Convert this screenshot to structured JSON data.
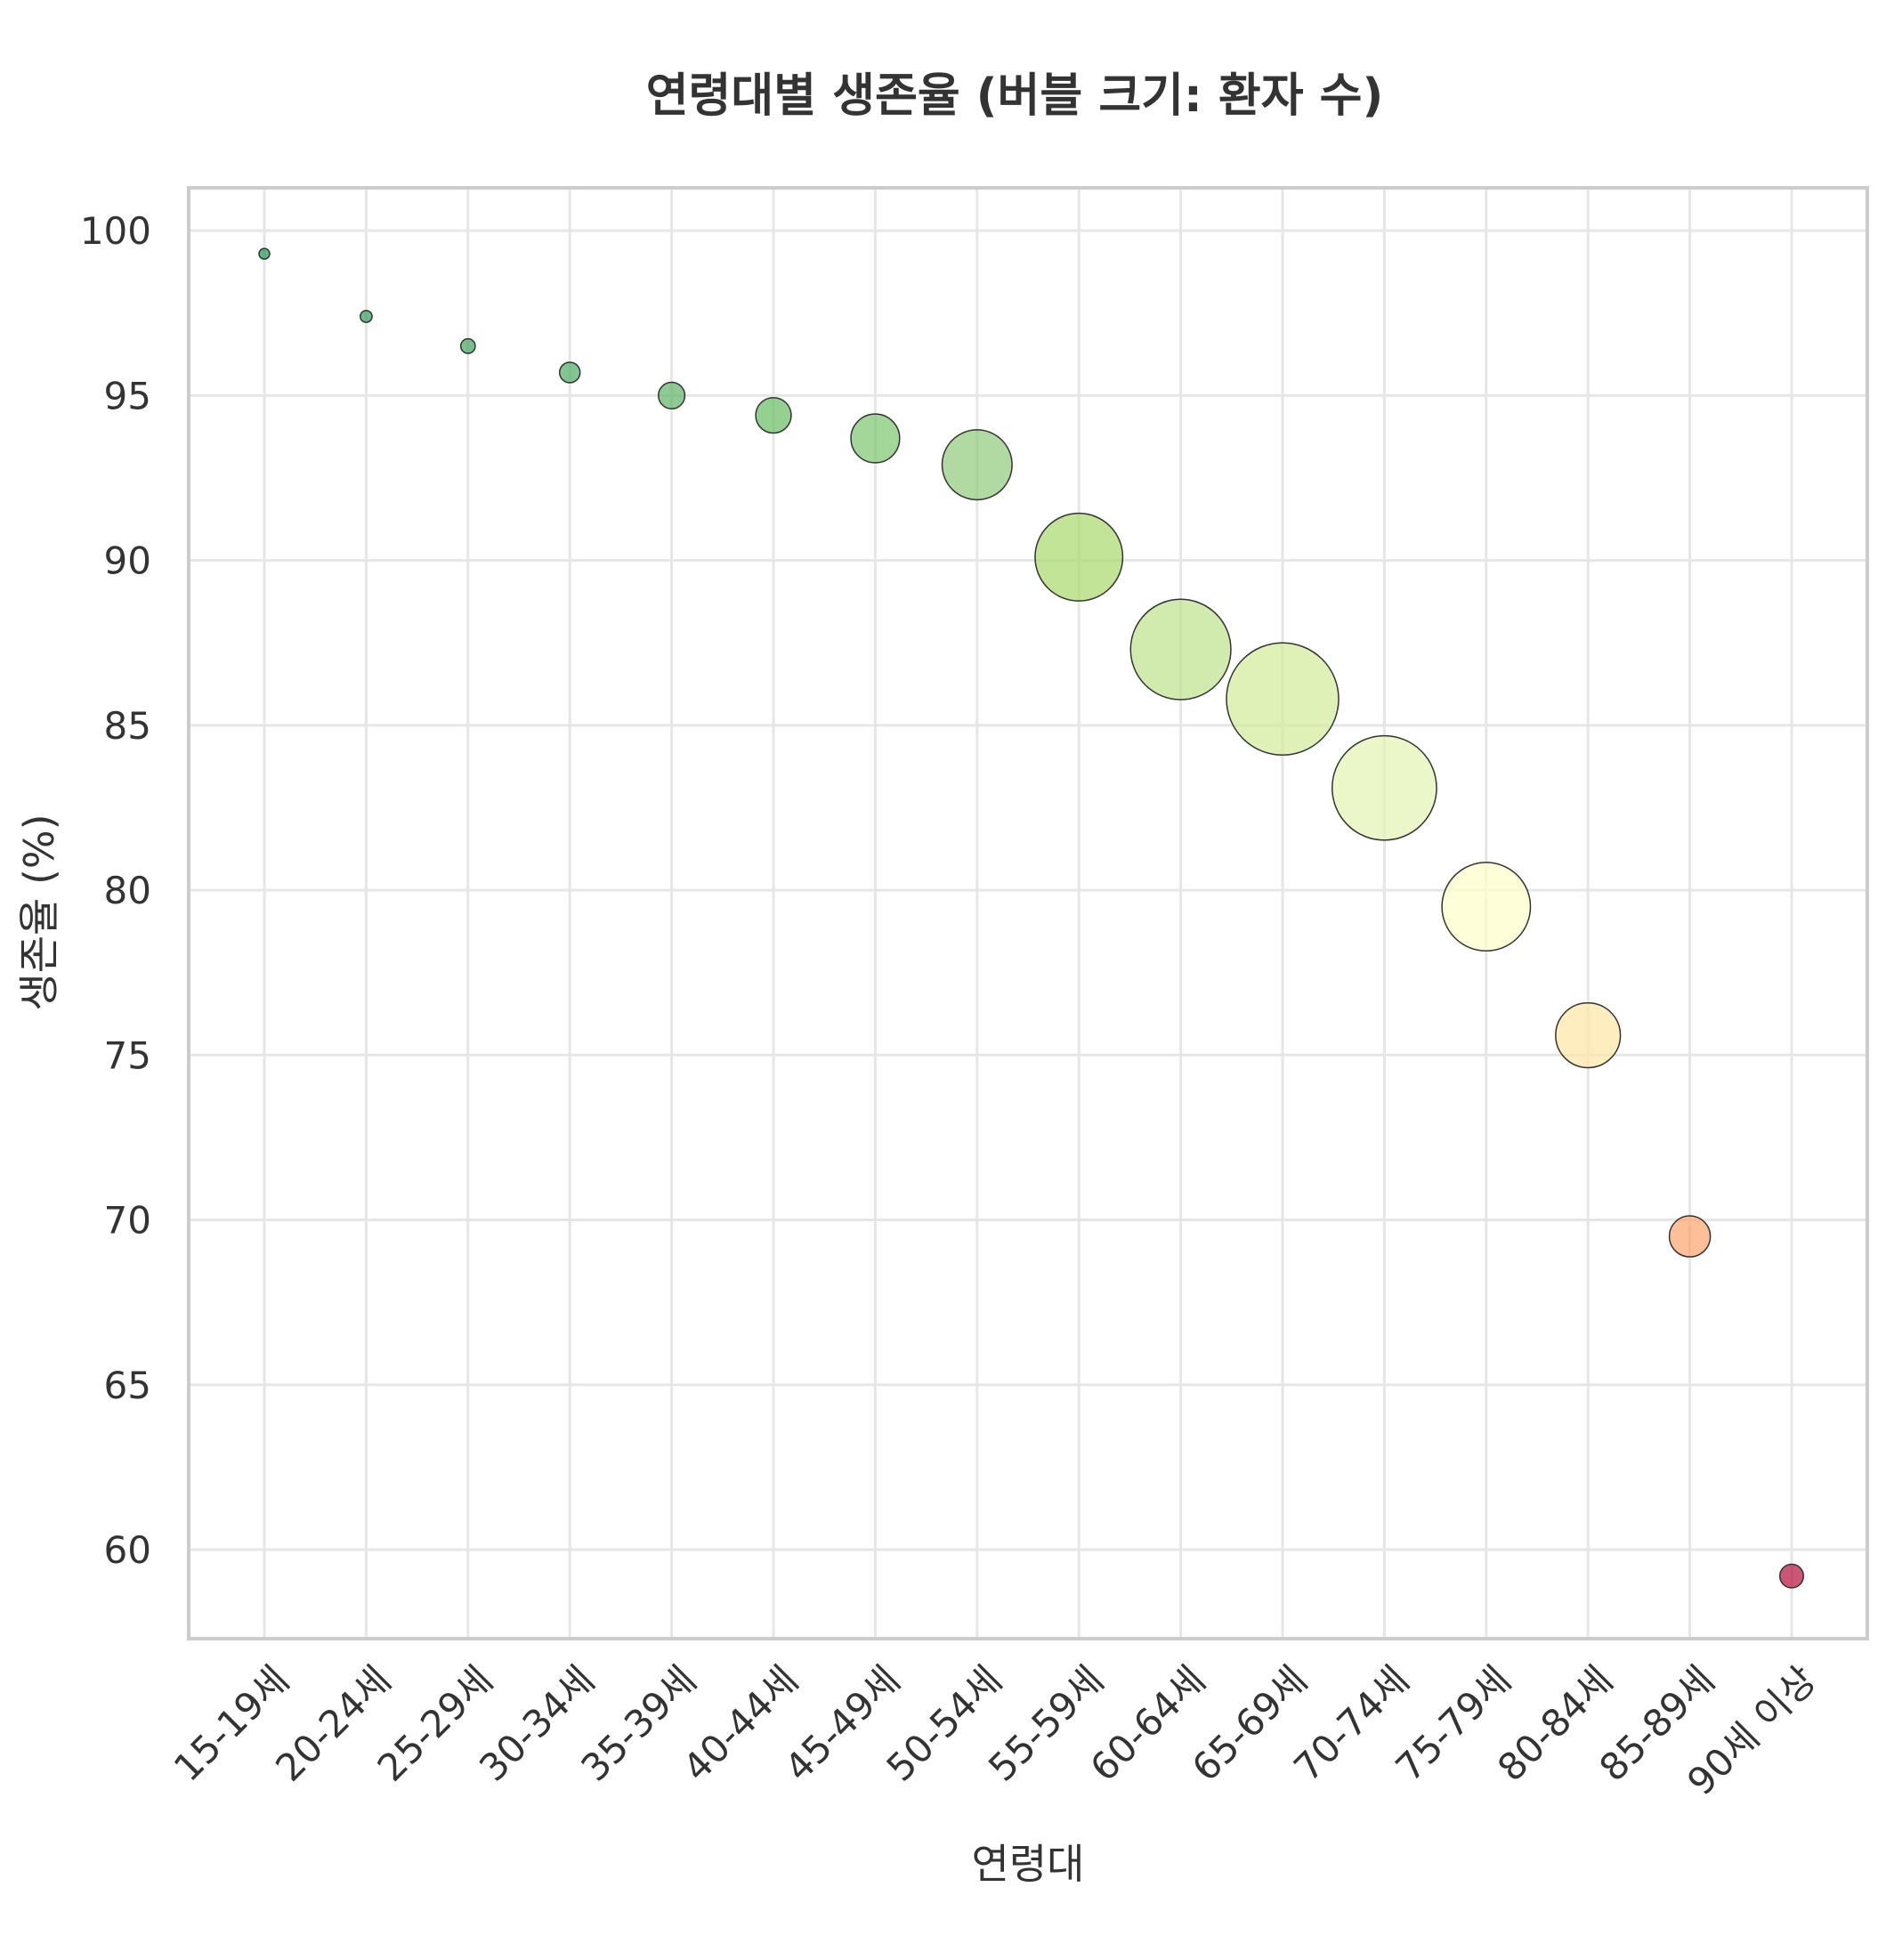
{
  "chart_data": {
    "type": "scatter",
    "title": "연령대별 생존율 (버블 크기: 환자 수)",
    "xlabel": "연령대",
    "ylabel": "생존율 (%)",
    "categories": [
      "15-19세",
      "20-24세",
      "25-29세",
      "30-34세",
      "35-39세",
      "40-44세",
      "45-49세",
      "50-54세",
      "55-59세",
      "60-64세",
      "65-69세",
      "70-74세",
      "75-79세",
      "80-84세",
      "85-89세",
      "90세 이상"
    ],
    "values": [
      99.3,
      97.4,
      96.5,
      95.7,
      95.0,
      94.4,
      93.7,
      92.9,
      90.1,
      87.3,
      85.8,
      83.1,
      79.5,
      75.6,
      69.5,
      59.2
    ],
    "bubble_size": [
      5,
      10,
      15,
      30,
      50,
      90,
      170,
      350,
      550,
      720,
      900,
      780,
      560,
      300,
      120,
      40
    ],
    "colors": [
      "#1a9850",
      "#2ea057",
      "#3ea65e",
      "#4dac62",
      "#5cb366",
      "#66bd63",
      "#7cc46e",
      "#8fcb7a",
      "#a6d96a",
      "#bee38c",
      "#d0ec9a",
      "#e2f3b0",
      "#fefec8",
      "#fee6a4",
      "#fca46c",
      "#b5103a"
    ],
    "ylim": [
      57.3,
      101.3
    ],
    "yticks": [
      60,
      65,
      70,
      75,
      80,
      85,
      90,
      95,
      100
    ],
    "grid": true,
    "legend": "none"
  }
}
